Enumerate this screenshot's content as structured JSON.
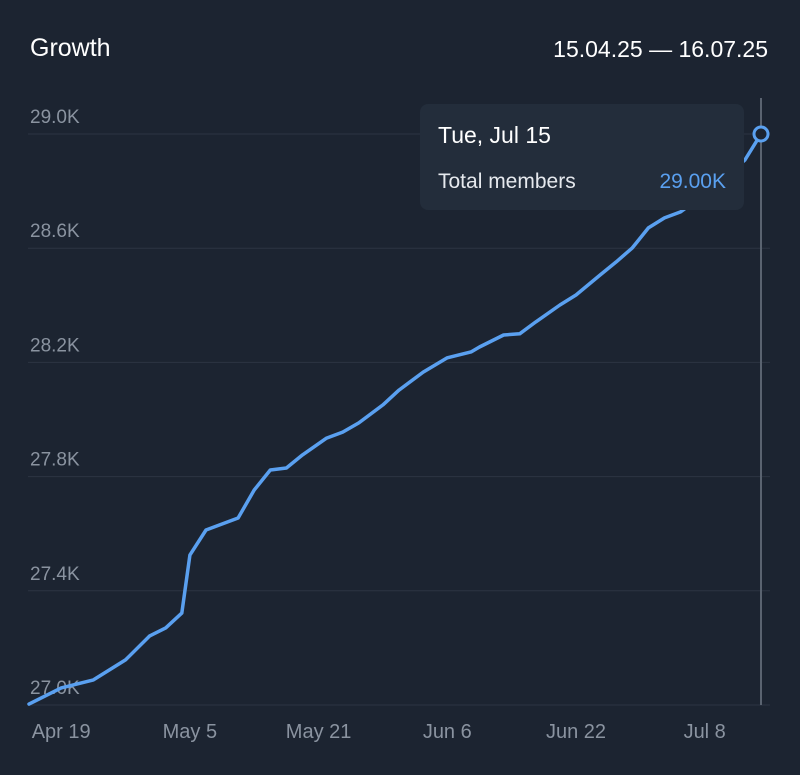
{
  "header": {
    "title": "Growth",
    "date_range": "15.04.25 — 16.07.25"
  },
  "tooltip": {
    "date": "Tue, Jul 15",
    "label": "Total members",
    "value": "29.00K"
  },
  "colors": {
    "line": "#5aa0f0",
    "grid": "#2c3542",
    "background": "#1c2431",
    "tick": "#8a93a0"
  },
  "chart_data": {
    "type": "line",
    "title": "Growth",
    "series": [
      {
        "name": "Total members",
        "points": [
          [
            "2025-04-15",
            27003
          ],
          [
            "2025-04-19",
            27060
          ],
          [
            "2025-04-23",
            27088
          ],
          [
            "2025-04-27",
            27158
          ],
          [
            "2025-04-30",
            27242
          ],
          [
            "2025-05-02",
            27270
          ],
          [
            "2025-05-04",
            27322
          ],
          [
            "2025-05-05",
            27525
          ],
          [
            "2025-05-07",
            27613
          ],
          [
            "2025-05-11",
            27655
          ],
          [
            "2025-05-13",
            27753
          ],
          [
            "2025-05-15",
            27823
          ],
          [
            "2025-05-17",
            27830
          ],
          [
            "2025-05-19",
            27876
          ],
          [
            "2025-05-22",
            27935
          ],
          [
            "2025-05-24",
            27956
          ],
          [
            "2025-05-26",
            27988
          ],
          [
            "2025-05-29",
            28051
          ],
          [
            "2025-05-31",
            28103
          ],
          [
            "2025-06-03",
            28166
          ],
          [
            "2025-06-06",
            28216
          ],
          [
            "2025-06-09",
            28237
          ],
          [
            "2025-06-10",
            28254
          ],
          [
            "2025-06-13",
            28296
          ],
          [
            "2025-06-15",
            28300
          ],
          [
            "2025-06-17",
            28342
          ],
          [
            "2025-06-20",
            28401
          ],
          [
            "2025-06-22",
            28436
          ],
          [
            "2025-06-25",
            28506
          ],
          [
            "2025-06-27",
            28552
          ],
          [
            "2025-06-29",
            28601
          ],
          [
            "2025-07-01",
            28671
          ],
          [
            "2025-07-03",
            28706
          ],
          [
            "2025-07-05",
            28727
          ],
          [
            "2025-07-07",
            28769
          ],
          [
            "2025-07-13",
            28909
          ],
          [
            "2025-07-15",
            29000
          ]
        ]
      }
    ],
    "xlim": [
      "2025-04-15",
      "2025-07-15"
    ],
    "ylim": [
      27000,
      29000
    ],
    "yticks": [
      27000,
      27400,
      27800,
      28200,
      28600,
      29000
    ],
    "ytick_labels": [
      "27.0K",
      "27.4K",
      "27.8K",
      "28.2K",
      "28.6K",
      "29.0K"
    ],
    "xticks": [
      "2025-04-19",
      "2025-05-05",
      "2025-05-21",
      "2025-06-06",
      "2025-06-22",
      "2025-07-08"
    ],
    "xtick_labels": [
      "Apr 19",
      "May 5",
      "May 21",
      "Jun 6",
      "Jun 22",
      "Jul 8"
    ],
    "selected": "2025-07-15",
    "grid": true
  }
}
